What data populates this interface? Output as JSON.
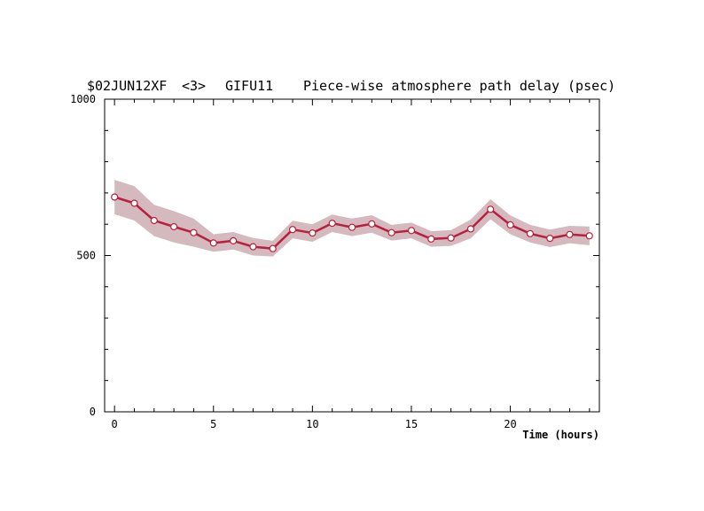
{
  "chart_data": {
    "type": "line",
    "title": {
      "experiment": "$02JUN12XF",
      "session": "<3>",
      "station": "GIFU11",
      "quantity": "Piece-wise atmosphere path delay (psec)"
    },
    "xlabel": "Time (hours)",
    "ylabel": "",
    "xlim": [
      -0.5,
      24.5
    ],
    "ylim": [
      0,
      1000
    ],
    "x_ticks": [
      0,
      5,
      10,
      15,
      20
    ],
    "y_ticks": [
      0,
      500,
      1000
    ],
    "grid": false,
    "colors": {
      "line": "#b8203f",
      "band": "#d4b9be",
      "marker_fill": "#ffffff"
    },
    "series": [
      {
        "x": [
          0,
          1,
          2,
          3,
          4,
          5,
          6,
          7,
          8,
          9,
          10,
          11,
          12,
          13,
          14,
          15,
          16,
          17,
          18,
          19,
          20,
          21,
          22,
          23,
          24
        ],
        "values": [
          687,
          667,
          612,
          592,
          573,
          540,
          547,
          528,
          522,
          583,
          572,
          603,
          590,
          601,
          573,
          580,
          553,
          556,
          585,
          648,
          598,
          570,
          555,
          567,
          563
        ],
        "error": [
          55,
          55,
          50,
          50,
          45,
          28,
          28,
          28,
          25,
          28,
          28,
          28,
          28,
          28,
          25,
          25,
          25,
          25,
          30,
          32,
          30,
          28,
          28,
          28,
          30
        ]
      }
    ]
  }
}
